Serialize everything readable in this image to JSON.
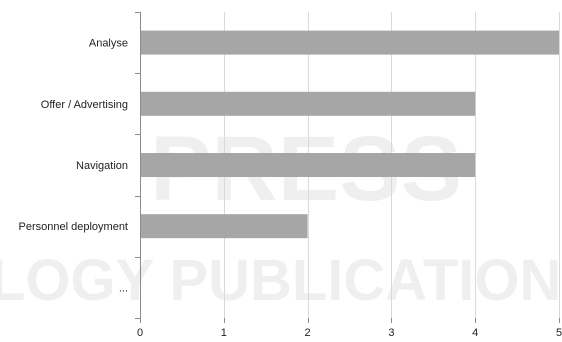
{
  "chart_data": {
    "type": "bar",
    "orientation": "horizontal",
    "categories": [
      "Analyse",
      "Offer / Advertising",
      "Navigation",
      "Personnel deployment",
      "..."
    ],
    "values": [
      5,
      4,
      4,
      2,
      null
    ],
    "xlim": [
      0,
      5
    ],
    "xticks": [
      0,
      1,
      2,
      3,
      4,
      5
    ],
    "grid": true,
    "legend": "none",
    "colors": {
      "bar": "#a6a6a6",
      "grid": "#d9d9d9",
      "axis": "#8c8c8c"
    }
  },
  "watermark": {
    "line1": "PRESS",
    "line2": "LOGY PUBLICATIONS"
  }
}
